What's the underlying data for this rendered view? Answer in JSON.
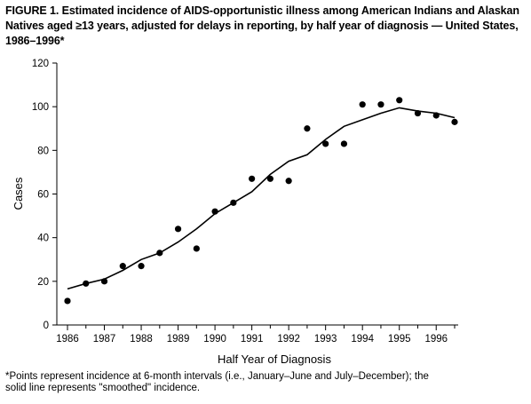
{
  "figure": {
    "title": "FIGURE 1. Estimated incidence of AIDS-opportunistic illness among American Indians and Alaskan Natives aged ≥13 years, adjusted for delays in reporting, by half year of diagnosis — United States, 1986–1996*",
    "footnote": "*Points represent incidence at 6-month intervals (i.e., January–June and July–December); the\nsolid line represents \"smoothed\" incidence."
  },
  "chart_data": {
    "type": "scatter",
    "xlabel": "Half Year of Diagnosis",
    "ylabel": "Cases",
    "ylim": [
      0,
      120
    ],
    "y_ticks": [
      0,
      20,
      40,
      60,
      80,
      100,
      120
    ],
    "xlim": [
      1986,
      1996.5
    ],
    "x_ticks": [
      "1986",
      "1987",
      "1988",
      "1989",
      "1990",
      "1991",
      "1992",
      "1993",
      "1994",
      "1995",
      "1996"
    ],
    "grid": false,
    "series": [
      {
        "kind": "points",
        "x": [
          1986.0,
          1986.5,
          1987.0,
          1987.5,
          1988.0,
          1988.5,
          1989.0,
          1989.5,
          1990.0,
          1990.5,
          1991.0,
          1991.5,
          1992.0,
          1992.5,
          1993.0,
          1993.5,
          1994.0,
          1994.5,
          1995.0,
          1995.5,
          1996.0,
          1996.5
        ],
        "values": [
          11,
          19,
          20,
          27,
          27,
          33,
          44,
          35,
          52,
          56,
          67,
          67,
          66,
          90,
          83,
          83,
          101,
          101,
          103,
          97,
          96,
          93
        ]
      },
      {
        "kind": "smoothed-line",
        "x": [
          1986.0,
          1986.5,
          1987.0,
          1987.5,
          1988.0,
          1988.5,
          1989.0,
          1989.5,
          1990.0,
          1990.5,
          1991.0,
          1991.5,
          1992.0,
          1992.5,
          1993.0,
          1993.5,
          1994.0,
          1994.5,
          1995.0,
          1995.5,
          1996.0,
          1996.5
        ],
        "values": [
          16.5,
          19,
          21,
          25,
          30,
          33,
          38,
          44,
          51,
          56,
          61,
          69,
          75,
          78,
          85,
          91,
          94,
          97,
          99.5,
          98,
          97,
          95
        ]
      }
    ]
  }
}
